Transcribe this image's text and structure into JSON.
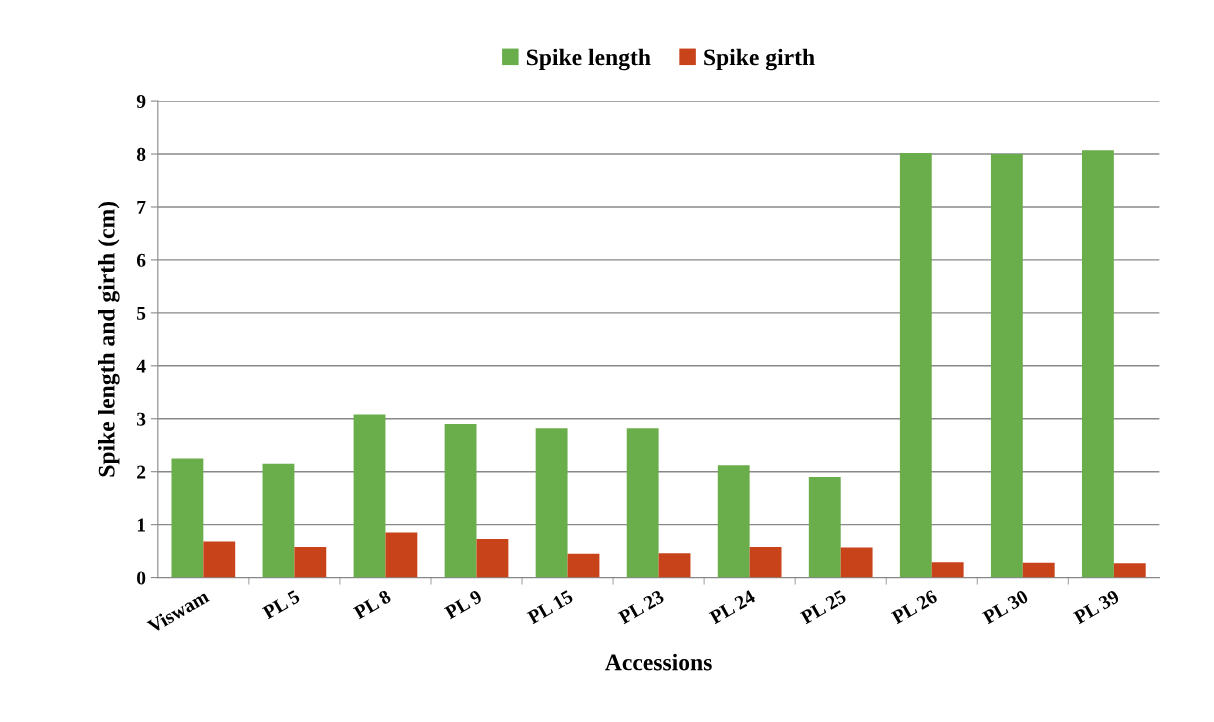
{
  "chart_data": {
    "type": "bar",
    "xlabel": "Accessions",
    "ylabel": "Spike length and girth (cm)",
    "categories": [
      "Viswam",
      "PL 5",
      "PL 8",
      "PL 9",
      "PL 15",
      "PL 23",
      "PL 24",
      "PL 25",
      "PL 26",
      "PL 30",
      "PL 39"
    ],
    "series": [
      {
        "name": "Spike length",
        "color": "#6aad4b",
        "values": [
          2.25,
          2.15,
          3.08,
          2.9,
          2.82,
          2.82,
          2.12,
          1.9,
          8.02,
          8.0,
          8.07
        ]
      },
      {
        "name": "Spike girth",
        "color": "#c8431a",
        "values": [
          0.68,
          0.58,
          0.85,
          0.73,
          0.45,
          0.46,
          0.58,
          0.57,
          0.29,
          0.28,
          0.27
        ]
      }
    ],
    "ylim": [
      0,
      9
    ],
    "yticks": [
      0,
      1,
      2,
      3,
      4,
      5,
      6,
      7,
      8,
      9
    ],
    "grid": "y",
    "legend": "top"
  }
}
